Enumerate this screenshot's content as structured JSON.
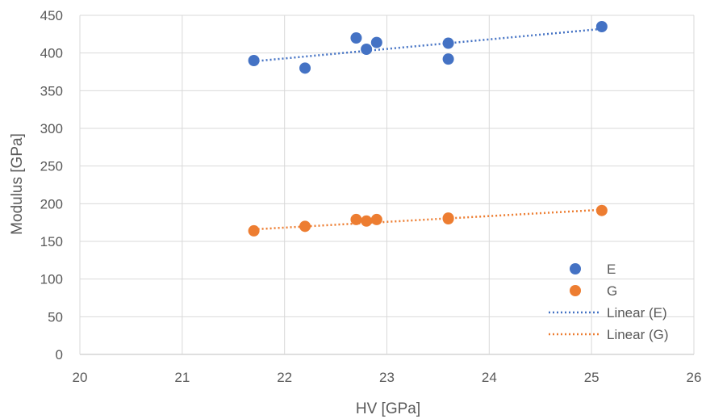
{
  "chart_data": {
    "type": "scatter",
    "title": "",
    "xlabel": "HV [GPa]",
    "ylabel": "Modulus [GPa]",
    "xlim": [
      20,
      26
    ],
    "ylim": [
      0,
      450
    ],
    "xticks": [
      "20",
      "21",
      "22",
      "23",
      "24",
      "25",
      "26"
    ],
    "yticks": [
      "0",
      "50",
      "100",
      "150",
      "200",
      "250",
      "300",
      "350",
      "400",
      "450"
    ],
    "grid": true,
    "legend_position": "bottom-right",
    "series": [
      {
        "name": "E",
        "color": "#4472c4",
        "points": [
          [
            21.7,
            390
          ],
          [
            22.2,
            380
          ],
          [
            22.7,
            420
          ],
          [
            22.8,
            405
          ],
          [
            22.9,
            414
          ],
          [
            23.6,
            413
          ],
          [
            23.6,
            392
          ],
          [
            25.1,
            435
          ]
        ]
      },
      {
        "name": "G",
        "color": "#ed7d31",
        "points": [
          [
            21.7,
            164
          ],
          [
            22.2,
            170
          ],
          [
            22.7,
            179
          ],
          [
            22.8,
            177
          ],
          [
            22.9,
            179
          ],
          [
            23.6,
            181
          ],
          [
            23.6,
            180
          ],
          [
            25.1,
            191
          ]
        ]
      }
    ],
    "trendlines": [
      {
        "name": "Linear (E)",
        "color": "#4472c4",
        "from": [
          21.7,
          389
        ],
        "to": [
          25.1,
          432
        ]
      },
      {
        "name": "Linear (G)",
        "color": "#ed7d31",
        "from": [
          21.7,
          166
        ],
        "to": [
          25.1,
          192
        ]
      }
    ]
  }
}
